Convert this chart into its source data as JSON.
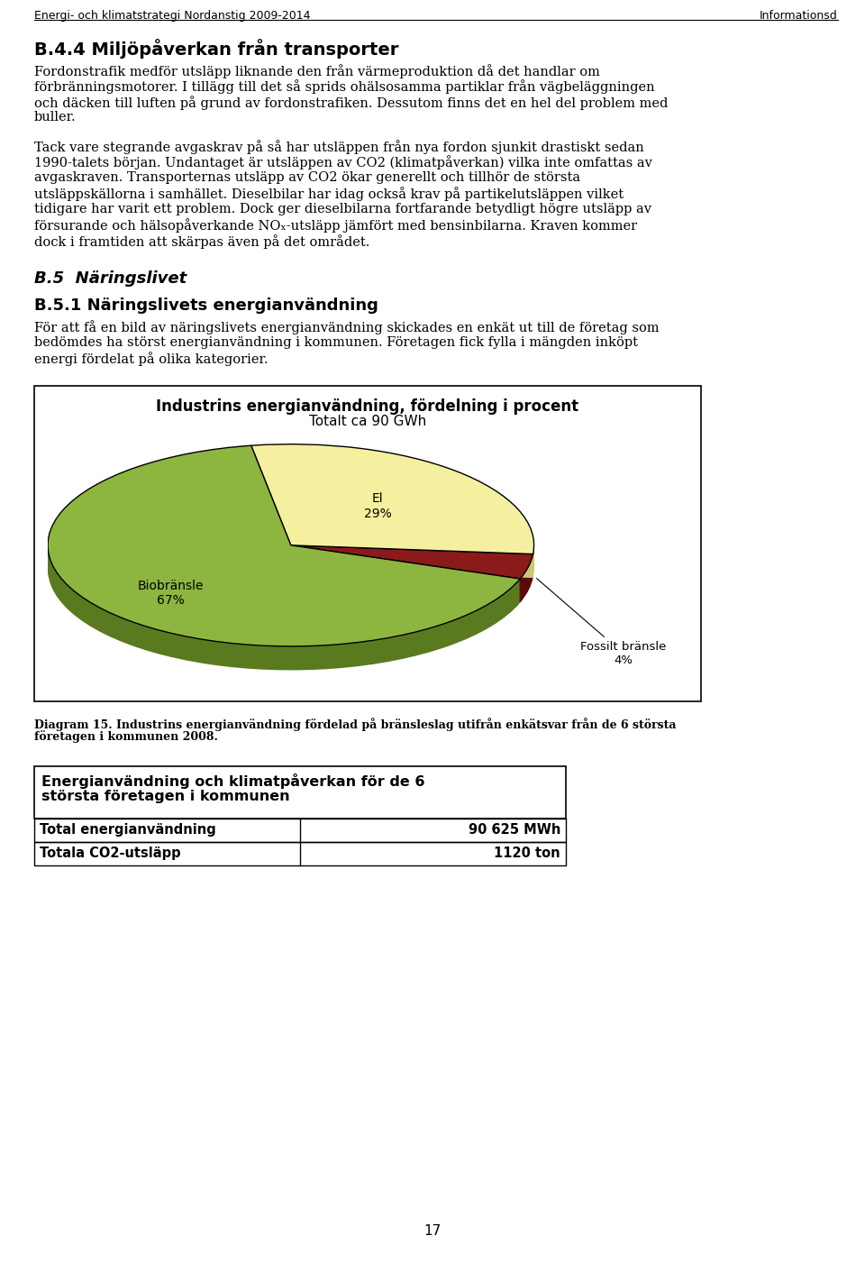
{
  "page_header_left": "Energi- och klimatstrategi Nordanstig 2009-2014",
  "page_header_right": "Informationsd",
  "section_b44_title": "B.4.4 Miljöpåverkan från transporter",
  "section_b44_text1_lines": [
    "Fordonstrafik medför utsläpp liknande den från värmeproduktion då det handlar om",
    "förbränningsmotorer. I tillägg till det så sprids ohälsosamma partiklar från vägbeläggningen",
    "och däcken till luften på grund av fordonstrafiken. Dessutom finns det en hel del problem med",
    "buller."
  ],
  "section_b44_text2_lines": [
    "Tack vare stegrande avgaskrav på så har utsläppen från nya fordon sjunkit drastiskt sedan",
    "1990-talets början. Undantaget är utsläppen av CO2 (klimatpåverkan) vilka inte omfattas av",
    "avgaskraven. Transporternas utsläpp av CO2 ökar generellt och tillhör de största",
    "utsläppskällorna i samhället. Dieselbilar har idag också krav på partikelutsläppen vilket",
    "tidigare har varit ett problem. Dock ger dieselbilarna fortfarande betydligt högre utsläpp av",
    "försurande och hälsopåverkande NOₓ-utsläpp jämfört med bensinbilarna. Kraven kommer",
    "dock i framtiden att skärpas även på det området."
  ],
  "section_b5_title": "B.5  Näringslivet",
  "section_b51_title": "B.5.1 Näringslivets energianvändning",
  "section_b51_text_lines": [
    "För att få en bild av näringslivets energianvändning skickades en enkät ut till de företag som",
    "bedömdes ha störst energianvändning i kommunen. Företagen fick fylla i mängden inköpt",
    "energi fördelat på olika kategorier."
  ],
  "chart_title": "Industrins energianvändning, fördelning i procent",
  "chart_subtitle": "Totalt ca 90 GWh",
  "pie_values": [
    67,
    29,
    4
  ],
  "pie_colors": [
    "#8db640",
    "#f5f0a0",
    "#8b1a1a"
  ],
  "pie_shadow_colors": [
    "#5a7a20",
    "#c8c870",
    "#5a0a0a"
  ],
  "pie_label_bio": "Biobränsle\n67%",
  "pie_label_el": "El\n29%",
  "pie_label_fossilt": "Fossilt bränsle\n4%",
  "diagram_caption_line1": "Diagram 15. Industrins energianvändning fördelad på bränsleslag utifrån enkätsvar från de 6 största",
  "diagram_caption_line2": "företagen i kommunen 2008.",
  "table_header_line1": "Energianvändning och klimatpåverkan för de 6",
  "table_header_line2": "största företagen i kommunen",
  "table_row1_label": "Total energianvändning",
  "table_row1_value": "90 625 MWh",
  "table_row2_label": "Totala CO2-utsläpp",
  "table_row2_value": "1120 ton",
  "page_number": "17",
  "bg_color": "#ffffff",
  "text_color": "#000000"
}
